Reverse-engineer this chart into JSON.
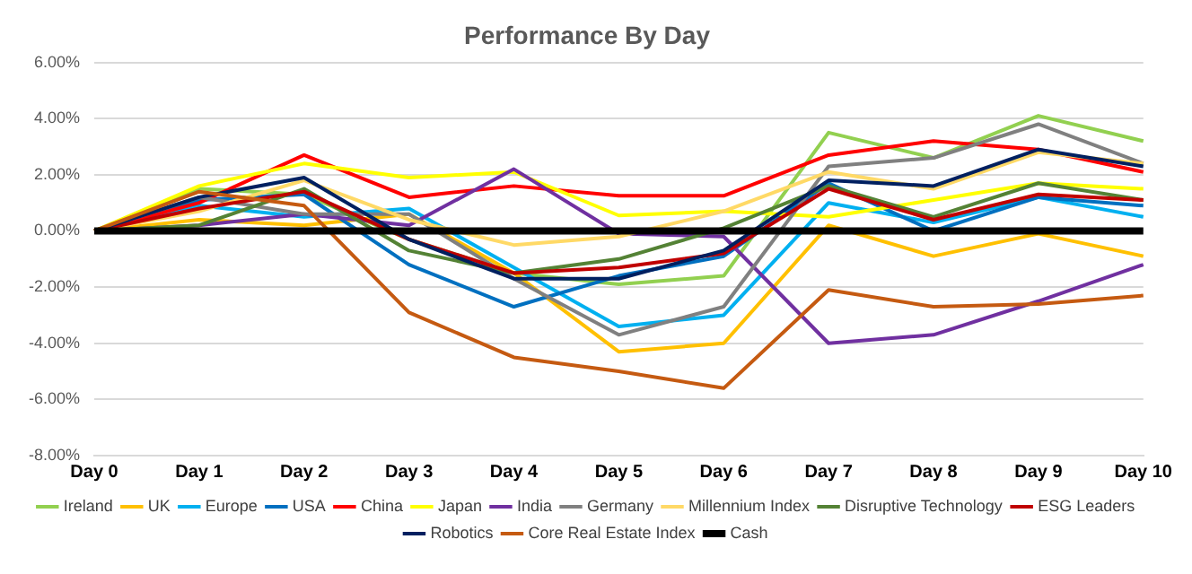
{
  "chart_data": {
    "type": "line",
    "title": "Performance By Day",
    "categories": [
      "Day 0",
      "Day 1",
      "Day 2",
      "Day 3",
      "Day 4",
      "Day 5",
      "Day 6",
      "Day 7",
      "Day 8",
      "Day 9",
      "Day 10"
    ],
    "ylim": [
      -8,
      6
    ],
    "yticks": [
      {
        "value": -8,
        "label": "-8.00%"
      },
      {
        "value": -6,
        "label": "-6.00%"
      },
      {
        "value": -4,
        "label": "-4.00%"
      },
      {
        "value": -2,
        "label": "-2.00%"
      },
      {
        "value": 0,
        "label": "0.00%"
      },
      {
        "value": 2,
        "label": "2.00%"
      },
      {
        "value": 4,
        "label": "4.00%"
      },
      {
        "value": 6,
        "label": "6.00%"
      }
    ],
    "grid": "y",
    "legend": "bottom",
    "marker": "none",
    "line_style": "solid",
    "series": [
      {
        "name": "Ireland",
        "color": "#92d050",
        "values": [
          0,
          1.5,
          1.3,
          -0.3,
          -1.5,
          -1.9,
          -1.6,
          3.5,
          2.6,
          4.1,
          3.2
        ]
      },
      {
        "name": "UK",
        "color": "#ffc000",
        "values": [
          0,
          0.4,
          0.2,
          0.6,
          -1.5,
          -4.3,
          -4.0,
          0.2,
          -0.9,
          -0.1,
          -0.9
        ]
      },
      {
        "name": "Europe",
        "color": "#00b0f0",
        "values": [
          0,
          0.9,
          0.5,
          0.8,
          -1.3,
          -3.4,
          -3.0,
          1.0,
          0.3,
          1.2,
          0.5
        ]
      },
      {
        "name": "USA",
        "color": "#0070c0",
        "values": [
          0,
          1.1,
          1.3,
          -1.2,
          -2.7,
          -1.6,
          -0.9,
          1.7,
          0.0,
          1.2,
          0.9
        ]
      },
      {
        "name": "China",
        "color": "#ff0000",
        "values": [
          0,
          1.0,
          2.7,
          1.2,
          1.6,
          1.25,
          1.25,
          2.7,
          3.2,
          2.9,
          2.1
        ]
      },
      {
        "name": "Japan",
        "color": "#ffff00",
        "values": [
          0,
          1.6,
          2.4,
          1.9,
          2.1,
          0.55,
          0.7,
          0.5,
          1.1,
          1.7,
          1.5
        ]
      },
      {
        "name": "India",
        "color": "#7030a0",
        "values": [
          0,
          0.2,
          0.6,
          0.2,
          2.2,
          -0.1,
          -0.2,
          -4.0,
          -3.7,
          -2.5,
          -1.2
        ]
      },
      {
        "name": "Germany",
        "color": "#808080",
        "values": [
          0,
          1.2,
          0.6,
          0.6,
          -1.7,
          -3.7,
          -2.7,
          2.3,
          2.6,
          3.8,
          2.4
        ]
      },
      {
        "name": "Millennium Index",
        "color": "#ffd966",
        "values": [
          0,
          0.7,
          1.8,
          0.4,
          -0.5,
          -0.2,
          0.7,
          2.1,
          1.5,
          2.8,
          2.4
        ]
      },
      {
        "name": "Disruptive Technology",
        "color": "#548235",
        "values": [
          0,
          0.2,
          1.5,
          -0.7,
          -1.5,
          -1.0,
          0.1,
          1.6,
          0.5,
          1.7,
          1.1
        ]
      },
      {
        "name": "ESG Leaders",
        "color": "#c00000",
        "values": [
          0,
          0.8,
          1.4,
          -0.3,
          -1.5,
          -1.3,
          -0.8,
          1.5,
          0.4,
          1.3,
          1.1
        ]
      },
      {
        "name": "Robotics",
        "color": "#002060",
        "values": [
          0,
          1.2,
          1.9,
          -0.3,
          -1.7,
          -1.7,
          -0.7,
          1.8,
          1.6,
          2.9,
          2.3
        ]
      },
      {
        "name": "Core Real Estate Index",
        "color": "#c55a11",
        "values": [
          0,
          1.4,
          0.9,
          -2.9,
          -4.5,
          -5.0,
          -5.6,
          -2.1,
          -2.7,
          -2.6,
          -2.3
        ]
      },
      {
        "name": "Cash",
        "color": "#000000",
        "values": [
          0,
          0,
          0,
          0,
          0,
          0,
          0,
          0,
          0,
          0,
          0
        ]
      }
    ]
  }
}
